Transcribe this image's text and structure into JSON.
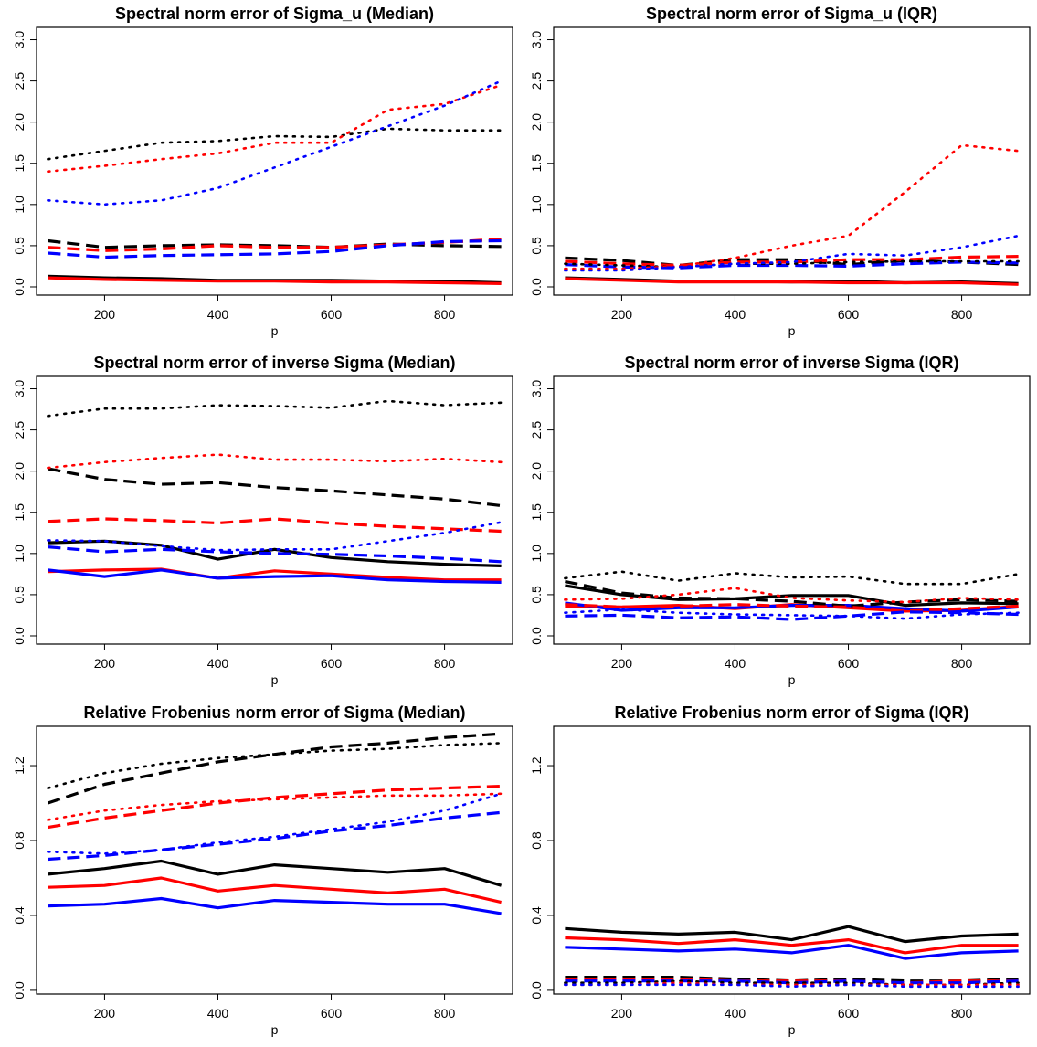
{
  "figure": {
    "series_colors": {
      "black": "#000000",
      "red": "#ff0000",
      "blue": "#0000ff"
    }
  },
  "chart_data": [
    {
      "type": "line",
      "title": "Spectral norm error of Sigma_u (Median)",
      "xlabel": "p",
      "ylabel": "",
      "xlim": [
        80,
        920
      ],
      "ylim": [
        -0.1,
        3.15
      ],
      "xticks": [
        200,
        400,
        600,
        800
      ],
      "yticks": [
        0.0,
        0.5,
        1.0,
        1.5,
        2.0,
        2.5,
        3.0
      ],
      "x": [
        100,
        200,
        300,
        400,
        500,
        600,
        700,
        800,
        900
      ],
      "series": [
        {
          "color": "black",
          "linestyle": "solid",
          "values": [
            0.13,
            0.11,
            0.1,
            0.08,
            0.08,
            0.08,
            0.07,
            0.07,
            0.05
          ]
        },
        {
          "color": "red",
          "linestyle": "solid",
          "values": [
            0.11,
            0.09,
            0.08,
            0.07,
            0.07,
            0.06,
            0.06,
            0.05,
            0.04
          ]
        },
        {
          "color": "black",
          "linestyle": "dashed",
          "values": [
            0.56,
            0.48,
            0.5,
            0.51,
            0.5,
            0.48,
            0.52,
            0.5,
            0.49
          ]
        },
        {
          "color": "red",
          "linestyle": "dashed",
          "values": [
            0.48,
            0.44,
            0.46,
            0.5,
            0.48,
            0.48,
            0.51,
            0.54,
            0.58
          ]
        },
        {
          "color": "blue",
          "linestyle": "dashed",
          "values": [
            0.41,
            0.36,
            0.38,
            0.39,
            0.4,
            0.43,
            0.5,
            0.55,
            0.56
          ]
        },
        {
          "color": "black",
          "linestyle": "dotted",
          "values": [
            1.55,
            1.65,
            1.75,
            1.77,
            1.83,
            1.82,
            1.92,
            1.9,
            1.9
          ]
        },
        {
          "color": "red",
          "linestyle": "dotted",
          "values": [
            1.4,
            1.47,
            1.55,
            1.62,
            1.75,
            1.75,
            2.15,
            2.22,
            2.45
          ]
        },
        {
          "color": "blue",
          "linestyle": "dotted",
          "values": [
            1.05,
            1.0,
            1.05,
            1.2,
            1.45,
            1.7,
            1.95,
            2.2,
            2.5
          ]
        }
      ]
    },
    {
      "type": "line",
      "title": "Spectral norm error of Sigma_u (IQR)",
      "xlabel": "p",
      "ylabel": "",
      "xlim": [
        80,
        920
      ],
      "ylim": [
        -0.1,
        3.15
      ],
      "xticks": [
        200,
        400,
        600,
        800
      ],
      "yticks": [
        0.0,
        0.5,
        1.0,
        1.5,
        2.0,
        2.5,
        3.0
      ],
      "x": [
        100,
        200,
        300,
        400,
        500,
        600,
        700,
        800,
        900
      ],
      "series": [
        {
          "color": "black",
          "linestyle": "solid",
          "values": [
            0.11,
            0.09,
            0.07,
            0.07,
            0.06,
            0.07,
            0.05,
            0.06,
            0.04
          ]
        },
        {
          "color": "red",
          "linestyle": "solid",
          "values": [
            0.1,
            0.08,
            0.06,
            0.06,
            0.06,
            0.05,
            0.05,
            0.05,
            0.03
          ]
        },
        {
          "color": "black",
          "linestyle": "dashed",
          "values": [
            0.35,
            0.32,
            0.26,
            0.33,
            0.33,
            0.27,
            0.32,
            0.3,
            0.27
          ]
        },
        {
          "color": "red",
          "linestyle": "dashed",
          "values": [
            0.31,
            0.28,
            0.26,
            0.3,
            0.3,
            0.33,
            0.33,
            0.36,
            0.37
          ]
        },
        {
          "color": "blue",
          "linestyle": "dashed",
          "values": [
            0.27,
            0.24,
            0.23,
            0.26,
            0.26,
            0.25,
            0.28,
            0.3,
            0.29
          ]
        },
        {
          "color": "black",
          "linestyle": "dotted",
          "values": [
            0.28,
            0.26,
            0.24,
            0.28,
            0.28,
            0.3,
            0.31,
            0.31,
            0.31
          ]
        },
        {
          "color": "red",
          "linestyle": "dotted",
          "values": [
            0.22,
            0.22,
            0.25,
            0.35,
            0.5,
            0.62,
            1.15,
            1.72,
            1.65
          ]
        },
        {
          "color": "blue",
          "linestyle": "dotted",
          "values": [
            0.2,
            0.2,
            0.24,
            0.28,
            0.3,
            0.4,
            0.38,
            0.48,
            0.62
          ]
        }
      ]
    },
    {
      "type": "line",
      "title": "Spectral norm error of inverse Sigma (Median)",
      "xlabel": "p",
      "ylabel": "",
      "xlim": [
        80,
        920
      ],
      "ylim": [
        -0.1,
        3.15
      ],
      "xticks": [
        200,
        400,
        600,
        800
      ],
      "yticks": [
        0.0,
        0.5,
        1.0,
        1.5,
        2.0,
        2.5,
        3.0
      ],
      "x": [
        100,
        200,
        300,
        400,
        500,
        600,
        700,
        800,
        900
      ],
      "series": [
        {
          "color": "black",
          "linestyle": "solid",
          "values": [
            1.13,
            1.15,
            1.1,
            0.93,
            1.05,
            0.95,
            0.9,
            0.87,
            0.85
          ]
        },
        {
          "color": "red",
          "linestyle": "solid",
          "values": [
            0.78,
            0.8,
            0.81,
            0.7,
            0.79,
            0.75,
            0.71,
            0.68,
            0.68
          ]
        },
        {
          "color": "blue",
          "linestyle": "solid",
          "values": [
            0.8,
            0.72,
            0.8,
            0.7,
            0.72,
            0.73,
            0.68,
            0.66,
            0.65
          ]
        },
        {
          "color": "black",
          "linestyle": "dashed",
          "values": [
            2.03,
            1.9,
            1.84,
            1.86,
            1.8,
            1.76,
            1.71,
            1.66,
            1.58
          ]
        },
        {
          "color": "red",
          "linestyle": "dashed",
          "values": [
            1.39,
            1.42,
            1.4,
            1.37,
            1.42,
            1.37,
            1.33,
            1.3,
            1.27
          ]
        },
        {
          "color": "blue",
          "linestyle": "dashed",
          "values": [
            1.08,
            1.02,
            1.05,
            1.02,
            1.0,
            0.99,
            0.97,
            0.94,
            0.9
          ]
        },
        {
          "color": "black",
          "linestyle": "dotted",
          "values": [
            2.67,
            2.76,
            2.76,
            2.8,
            2.79,
            2.77,
            2.85,
            2.8,
            2.83
          ]
        },
        {
          "color": "red",
          "linestyle": "dotted",
          "values": [
            2.04,
            2.11,
            2.16,
            2.2,
            2.14,
            2.14,
            2.12,
            2.15,
            2.11
          ]
        },
        {
          "color": "blue",
          "linestyle": "dotted",
          "values": [
            1.16,
            1.15,
            1.09,
            1.04,
            1.05,
            1.05,
            1.15,
            1.25,
            1.38
          ]
        }
      ]
    },
    {
      "type": "line",
      "title": "Spectral norm error of inverse Sigma (IQR)",
      "xlabel": "p",
      "ylabel": "",
      "xlim": [
        80,
        920
      ],
      "ylim": [
        -0.1,
        3.15
      ],
      "xticks": [
        200,
        400,
        600,
        800
      ],
      "yticks": [
        0.0,
        0.5,
        1.0,
        1.5,
        2.0,
        2.5,
        3.0
      ],
      "x": [
        100,
        200,
        300,
        400,
        500,
        600,
        700,
        800,
        900
      ],
      "series": [
        {
          "color": "black",
          "linestyle": "solid",
          "values": [
            0.61,
            0.5,
            0.44,
            0.45,
            0.49,
            0.49,
            0.37,
            0.4,
            0.39
          ]
        },
        {
          "color": "red",
          "linestyle": "solid",
          "values": [
            0.36,
            0.35,
            0.37,
            0.33,
            0.38,
            0.34,
            0.3,
            0.31,
            0.36
          ]
        },
        {
          "color": "blue",
          "linestyle": "solid",
          "values": [
            0.4,
            0.31,
            0.34,
            0.34,
            0.37,
            0.37,
            0.33,
            0.3,
            0.35
          ]
        },
        {
          "color": "black",
          "linestyle": "dashed",
          "values": [
            0.66,
            0.52,
            0.46,
            0.45,
            0.42,
            0.36,
            0.41,
            0.44,
            0.42
          ]
        },
        {
          "color": "red",
          "linestyle": "dashed",
          "values": [
            0.38,
            0.35,
            0.36,
            0.38,
            0.36,
            0.35,
            0.3,
            0.33,
            0.36
          ]
        },
        {
          "color": "blue",
          "linestyle": "dashed",
          "values": [
            0.24,
            0.25,
            0.22,
            0.23,
            0.2,
            0.24,
            0.29,
            0.28,
            0.26
          ]
        },
        {
          "color": "black",
          "linestyle": "dotted",
          "values": [
            0.7,
            0.78,
            0.67,
            0.76,
            0.71,
            0.72,
            0.63,
            0.63,
            0.75
          ]
        },
        {
          "color": "red",
          "linestyle": "dotted",
          "values": [
            0.44,
            0.45,
            0.5,
            0.58,
            0.46,
            0.43,
            0.41,
            0.46,
            0.44
          ]
        },
        {
          "color": "blue",
          "linestyle": "dotted",
          "values": [
            0.28,
            0.32,
            0.28,
            0.26,
            0.25,
            0.24,
            0.21,
            0.26,
            0.28
          ]
        }
      ]
    },
    {
      "type": "line",
      "title": "Relative Frobenius norm error of Sigma (Median)",
      "xlabel": "p",
      "ylabel": "",
      "xlim": [
        80,
        920
      ],
      "ylim": [
        -0.02,
        1.41
      ],
      "xticks": [
        200,
        400,
        600,
        800
      ],
      "yticks": [
        0.0,
        0.4,
        0.8,
        1.2
      ],
      "x": [
        100,
        200,
        300,
        400,
        500,
        600,
        700,
        800,
        900
      ],
      "series": [
        {
          "color": "black",
          "linestyle": "solid",
          "values": [
            0.62,
            0.65,
            0.69,
            0.62,
            0.67,
            0.65,
            0.63,
            0.65,
            0.56
          ]
        },
        {
          "color": "red",
          "linestyle": "solid",
          "values": [
            0.55,
            0.56,
            0.6,
            0.53,
            0.56,
            0.54,
            0.52,
            0.54,
            0.47
          ]
        },
        {
          "color": "blue",
          "linestyle": "solid",
          "values": [
            0.45,
            0.46,
            0.49,
            0.44,
            0.48,
            0.47,
            0.46,
            0.46,
            0.41
          ]
        },
        {
          "color": "black",
          "linestyle": "dashed",
          "values": [
            1.0,
            1.1,
            1.16,
            1.22,
            1.26,
            1.3,
            1.32,
            1.35,
            1.37
          ]
        },
        {
          "color": "red",
          "linestyle": "dashed",
          "values": [
            0.87,
            0.92,
            0.96,
            1.0,
            1.03,
            1.05,
            1.07,
            1.08,
            1.09
          ]
        },
        {
          "color": "blue",
          "linestyle": "dashed",
          "values": [
            0.7,
            0.72,
            0.75,
            0.78,
            0.81,
            0.85,
            0.88,
            0.92,
            0.95
          ]
        },
        {
          "color": "black",
          "linestyle": "dotted",
          "values": [
            1.08,
            1.16,
            1.21,
            1.24,
            1.26,
            1.28,
            1.29,
            1.31,
            1.32
          ]
        },
        {
          "color": "red",
          "linestyle": "dotted",
          "values": [
            0.91,
            0.96,
            0.99,
            1.01,
            1.02,
            1.03,
            1.04,
            1.04,
            1.05
          ]
        },
        {
          "color": "blue",
          "linestyle": "dotted",
          "values": [
            0.74,
            0.73,
            0.75,
            0.79,
            0.82,
            0.86,
            0.9,
            0.96,
            1.05
          ]
        }
      ]
    },
    {
      "type": "line",
      "title": "Relative Frobenius norm error of Sigma (IQR)",
      "xlabel": "p",
      "ylabel": "",
      "xlim": [
        80,
        920
      ],
      "ylim": [
        -0.02,
        1.41
      ],
      "xticks": [
        200,
        400,
        600,
        800
      ],
      "yticks": [
        0.0,
        0.4,
        0.8,
        1.2
      ],
      "x": [
        100,
        200,
        300,
        400,
        500,
        600,
        700,
        800,
        900
      ],
      "series": [
        {
          "color": "black",
          "linestyle": "solid",
          "values": [
            0.33,
            0.31,
            0.3,
            0.31,
            0.27,
            0.34,
            0.26,
            0.29,
            0.3
          ]
        },
        {
          "color": "red",
          "linestyle": "solid",
          "values": [
            0.28,
            0.27,
            0.25,
            0.27,
            0.24,
            0.27,
            0.2,
            0.24,
            0.24
          ]
        },
        {
          "color": "blue",
          "linestyle": "solid",
          "values": [
            0.23,
            0.22,
            0.21,
            0.22,
            0.2,
            0.24,
            0.17,
            0.2,
            0.21
          ]
        },
        {
          "color": "black",
          "linestyle": "dashed",
          "values": [
            0.07,
            0.07,
            0.07,
            0.06,
            0.05,
            0.06,
            0.05,
            0.05,
            0.06
          ]
        },
        {
          "color": "red",
          "linestyle": "dashed",
          "values": [
            0.06,
            0.06,
            0.06,
            0.05,
            0.05,
            0.05,
            0.04,
            0.05,
            0.05
          ]
        },
        {
          "color": "blue",
          "linestyle": "dashed",
          "values": [
            0.05,
            0.05,
            0.05,
            0.05,
            0.04,
            0.05,
            0.04,
            0.04,
            0.05
          ]
        },
        {
          "color": "black",
          "linestyle": "dotted",
          "values": [
            0.04,
            0.04,
            0.05,
            0.04,
            0.04,
            0.04,
            0.03,
            0.03,
            0.04
          ]
        },
        {
          "color": "red",
          "linestyle": "dotted",
          "values": [
            0.03,
            0.03,
            0.04,
            0.03,
            0.03,
            0.03,
            0.03,
            0.03,
            0.03
          ]
        },
        {
          "color": "blue",
          "linestyle": "dotted",
          "values": [
            0.03,
            0.03,
            0.03,
            0.03,
            0.02,
            0.03,
            0.02,
            0.02,
            0.02
          ]
        }
      ]
    }
  ]
}
